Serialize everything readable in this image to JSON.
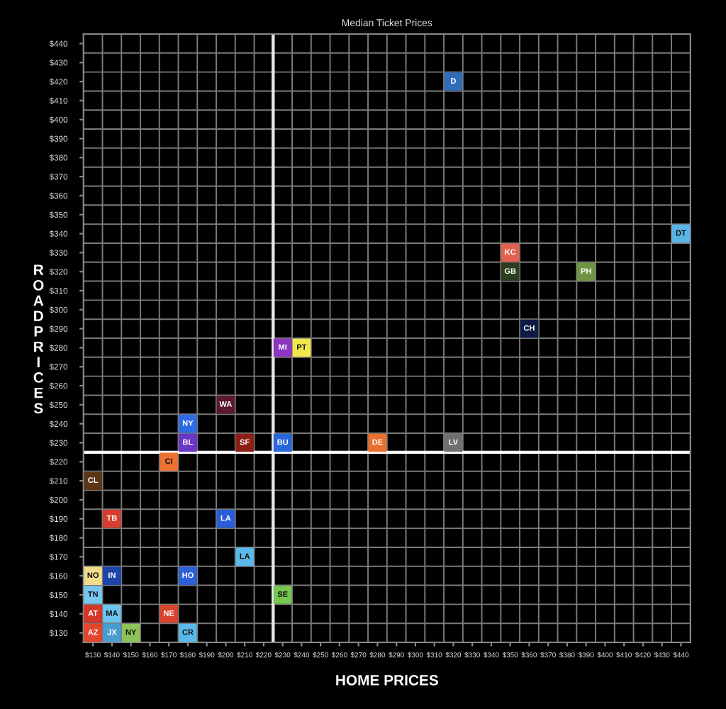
{
  "chart_data": {
    "type": "scatter",
    "title": "Median Ticket Prices",
    "xlabel": "HOME PRICES",
    "ylabel": "ROADPRICES",
    "xlim": [
      125,
      445
    ],
    "ylim": [
      125,
      445
    ],
    "xticks": [
      {
        "value": 130,
        "label": "$130"
      },
      {
        "value": 140,
        "label": "$140"
      },
      {
        "value": 150,
        "label": "$150"
      },
      {
        "value": 160,
        "label": "$160"
      },
      {
        "value": 170,
        "label": "$170"
      },
      {
        "value": 180,
        "label": "$180"
      },
      {
        "value": 190,
        "label": "$190"
      },
      {
        "value": 200,
        "label": "$200"
      },
      {
        "value": 210,
        "label": "$210"
      },
      {
        "value": 220,
        "label": "$220"
      },
      {
        "value": 230,
        "label": "$230"
      },
      {
        "value": 240,
        "label": "$240"
      },
      {
        "value": 250,
        "label": "$250"
      },
      {
        "value": 260,
        "label": "$260"
      },
      {
        "value": 270,
        "label": "$270"
      },
      {
        "value": 280,
        "label": "$280"
      },
      {
        "value": 290,
        "label": "$290"
      },
      {
        "value": 300,
        "label": "$300"
      },
      {
        "value": 310,
        "label": "$310"
      },
      {
        "value": 320,
        "label": "$320"
      },
      {
        "value": 330,
        "label": "$330"
      },
      {
        "value": 340,
        "label": "$340"
      },
      {
        "value": 350,
        "label": "$350"
      },
      {
        "value": 360,
        "label": "$360"
      },
      {
        "value": 370,
        "label": "$370"
      },
      {
        "value": 380,
        "label": "$380"
      },
      {
        "value": 390,
        "label": "$390"
      },
      {
        "value": 400,
        "label": "$400"
      },
      {
        "value": 410,
        "label": "$410"
      },
      {
        "value": 420,
        "label": "$420"
      },
      {
        "value": 430,
        "label": "$430"
      },
      {
        "value": 440,
        "label": "$440"
      }
    ],
    "yticks": [
      {
        "value": 130,
        "label": "$130"
      },
      {
        "value": 140,
        "label": "$140"
      },
      {
        "value": 150,
        "label": "$150"
      },
      {
        "value": 160,
        "label": "$160"
      },
      {
        "value": 170,
        "label": "$170"
      },
      {
        "value": 180,
        "label": "$180"
      },
      {
        "value": 190,
        "label": "$190"
      },
      {
        "value": 200,
        "label": "$200"
      },
      {
        "value": 210,
        "label": "$210"
      },
      {
        "value": 220,
        "label": "$220"
      },
      {
        "value": 230,
        "label": "$230"
      },
      {
        "value": 240,
        "label": "$240"
      },
      {
        "value": 250,
        "label": "$250"
      },
      {
        "value": 260,
        "label": "$260"
      },
      {
        "value": 270,
        "label": "$270"
      },
      {
        "value": 280,
        "label": "$280"
      },
      {
        "value": 290,
        "label": "$290"
      },
      {
        "value": 300,
        "label": "$300"
      },
      {
        "value": 310,
        "label": "$310"
      },
      {
        "value": 320,
        "label": "$320"
      },
      {
        "value": 330,
        "label": "$330"
      },
      {
        "value": 340,
        "label": "$340"
      },
      {
        "value": 350,
        "label": "$350"
      },
      {
        "value": 360,
        "label": "$360"
      },
      {
        "value": 370,
        "label": "$370"
      },
      {
        "value": 380,
        "label": "$380"
      },
      {
        "value": 390,
        "label": "$390"
      },
      {
        "value": 400,
        "label": "$400"
      },
      {
        "value": 410,
        "label": "$410"
      },
      {
        "value": 420,
        "label": "$420"
      },
      {
        "value": 430,
        "label": "$430"
      },
      {
        "value": 440,
        "label": "$440"
      }
    ],
    "grid": true,
    "marker": "square",
    "ref_lines": [
      {
        "axis": "x",
        "value": 225,
        "color": "#e6e6e6"
      },
      {
        "axis": "y",
        "value": 225,
        "color": "#ffffff"
      }
    ],
    "series": [
      {
        "name": "D",
        "color": "#2f6db8",
        "x": [
          320
        ],
        "values": [
          420
        ]
      },
      {
        "name": "DT",
        "color": "#5ab4e6",
        "x": [
          440
        ],
        "values": [
          340
        ]
      },
      {
        "name": "KC",
        "color": "#e2604f",
        "x": [
          350
        ],
        "values": [
          330
        ]
      },
      {
        "name": "GB",
        "color": "#2c3d1e",
        "x": [
          350
        ],
        "values": [
          320
        ]
      },
      {
        "name": "PH",
        "color": "#6f9444",
        "x": [
          390
        ],
        "values": [
          320
        ]
      },
      {
        "name": "CH",
        "color": "#0c1a45",
        "x": [
          360
        ],
        "values": [
          290
        ]
      },
      {
        "name": "MI",
        "color": "#8b35c0",
        "x": [
          230
        ],
        "values": [
          280
        ]
      },
      {
        "name": "PT",
        "color": "#f1e94a",
        "x": [
          240
        ],
        "values": [
          280
        ]
      },
      {
        "name": "WA",
        "color": "#5a1a2c",
        "x": [
          200
        ],
        "values": [
          250
        ]
      },
      {
        "name": "NY",
        "color": "#2d6ce4",
        "x": [
          180
        ],
        "values": [
          240
        ]
      },
      {
        "name": "BL",
        "color": "#6a38c8",
        "x": [
          180
        ],
        "values": [
          230
        ]
      },
      {
        "name": "SF",
        "color": "#8b1f16",
        "x": [
          210
        ],
        "values": [
          230
        ]
      },
      {
        "name": "BU",
        "color": "#2a66dc",
        "x": [
          230
        ],
        "values": [
          230
        ]
      },
      {
        "name": "DE",
        "color": "#ea6e2d",
        "x": [
          280
        ],
        "values": [
          230
        ]
      },
      {
        "name": "LV",
        "color": "#6f6f6f",
        "x": [
          320
        ],
        "values": [
          230
        ]
      },
      {
        "name": "CI",
        "color": "#ee7232",
        "x": [
          170
        ],
        "values": [
          220
        ]
      },
      {
        "name": "CL",
        "color": "#5a3614",
        "x": [
          130
        ],
        "values": [
          210
        ]
      },
      {
        "name": "TB",
        "color": "#d63d2e",
        "x": [
          140
        ],
        "values": [
          190
        ]
      },
      {
        "name": "LA",
        "color": "#2a5ed8",
        "x": [
          200
        ],
        "values": [
          190
        ]
      },
      {
        "name": "LA",
        "color": "#5ab9ea",
        "x": [
          210
        ],
        "values": [
          170
        ]
      },
      {
        "name": "NO",
        "color": "#f1dc8a",
        "x": [
          130
        ],
        "values": [
          160
        ]
      },
      {
        "name": "IN",
        "color": "#1d44a8",
        "x": [
          140
        ],
        "values": [
          160
        ]
      },
      {
        "name": "HO",
        "color": "#2d5fd8",
        "x": [
          180
        ],
        "values": [
          160
        ]
      },
      {
        "name": "TN",
        "color": "#77c8f0",
        "x": [
          130
        ],
        "values": [
          150
        ]
      },
      {
        "name": "SE",
        "color": "#76c650",
        "x": [
          230
        ],
        "values": [
          150
        ]
      },
      {
        "name": "AT",
        "color": "#d4372a",
        "x": [
          130
        ],
        "values": [
          140
        ]
      },
      {
        "name": "MA",
        "color": "#6cc4ee",
        "x": [
          140
        ],
        "values": [
          140
        ]
      },
      {
        "name": "NE",
        "color": "#d9432f",
        "x": [
          170
        ],
        "values": [
          140
        ]
      },
      {
        "name": "AZ",
        "color": "#e2462f",
        "x": [
          130
        ],
        "values": [
          130
        ]
      },
      {
        "name": "JX",
        "color": "#4a9bd0",
        "x": [
          140
        ],
        "values": [
          130
        ]
      },
      {
        "name": "NY",
        "color": "#8cc45a",
        "x": [
          150
        ],
        "values": [
          130
        ]
      },
      {
        "name": "CR",
        "color": "#5ab9ea",
        "x": [
          180
        ],
        "values": [
          130
        ]
      }
    ]
  }
}
